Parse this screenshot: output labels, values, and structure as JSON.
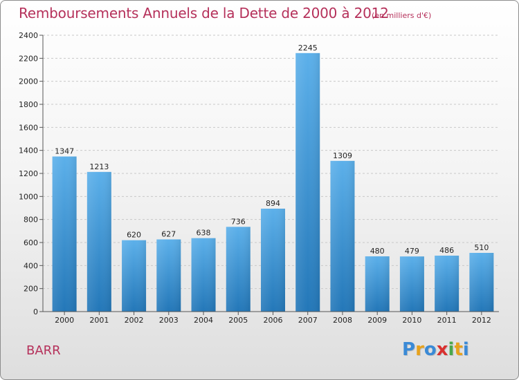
{
  "header": {
    "title": "Remboursements Annuels de la Dette de 2000 à 2012",
    "unit": "(en milliers d'€)"
  },
  "footer": {
    "commune": "BARR",
    "logo_text": "Proxiti",
    "logo_letters": [
      {
        "ch": "P",
        "color": "#3a8ad6"
      },
      {
        "ch": "r",
        "color": "#e7a21c"
      },
      {
        "ch": "o",
        "color": "#3a8ad6"
      },
      {
        "ch": "x",
        "color": "#d9302f"
      },
      {
        "ch": "i",
        "color": "#4aa84b"
      },
      {
        "ch": "t",
        "color": "#e7a21c"
      },
      {
        "ch": "i",
        "color": "#3a8ad6"
      }
    ]
  },
  "colors": {
    "title": "#b5305a",
    "bar_top": "#5cb0ea",
    "bar_bottom": "#2377b8"
  },
  "chart_data": {
    "type": "bar",
    "title": "Remboursements Annuels de la Dette de 2000 à 2012",
    "ylabel": "en milliers d'€",
    "xlabel": "",
    "categories": [
      "2000",
      "2001",
      "2002",
      "2003",
      "2004",
      "2005",
      "2006",
      "2007",
      "2008",
      "2009",
      "2010",
      "2011",
      "2012"
    ],
    "values": [
      1347,
      1213,
      620,
      627,
      638,
      736,
      894,
      2245,
      1309,
      480,
      479,
      486,
      510
    ],
    "ylim": [
      0,
      2400
    ],
    "yticks": [
      0,
      200,
      400,
      600,
      800,
      1000,
      1200,
      1400,
      1600,
      1800,
      2000,
      2200,
      2400
    ],
    "grid": true
  }
}
